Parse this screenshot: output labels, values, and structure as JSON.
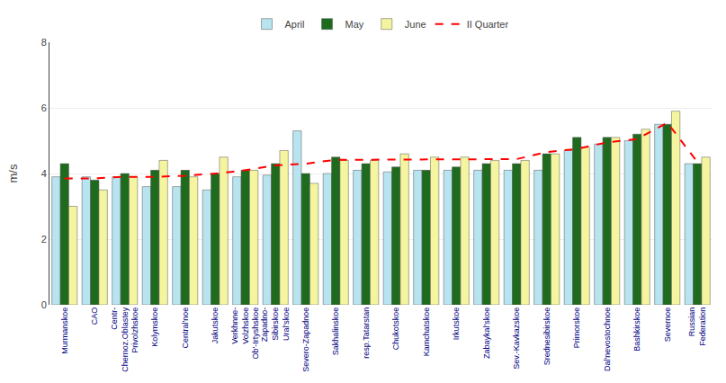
{
  "chart_data": {
    "type": "bar",
    "categories": [
      "Murmanskoe",
      "CAO",
      "Centr-\nChernoz.Oblastey\nPrivolzhskoe",
      "Kolymskoe",
      "Central'noe",
      "Jakutskoe",
      "Verkhnne-\nVolzhskoe\nOb'-Irtyshskoe",
      "Zapadno-\nSibirskoe\nUral'skoe",
      "Severo-Zapadnoe",
      "Sakhalinskoe",
      "resp.Tatarstan",
      "Chukotskoe",
      "Kamchatskoe",
      "Irkutskoe",
      "Zabaykal'skoe",
      "Sev.-Kavkazskoe",
      "Srednesibirskoe",
      "Primorskoe",
      "Dal'nevostochnoe",
      "Bashkirskoe",
      "Severnoe",
      "Russian\nFederation"
    ],
    "series": [
      {
        "name": "April",
        "type": "bar",
        "color": "#b8e4f0",
        "values": [
          3.9,
          3.9,
          3.9,
          3.6,
          3.6,
          3.5,
          3.9,
          3.95,
          5.3,
          4.0,
          4.1,
          4.05,
          4.1,
          4.1,
          4.1,
          4.1,
          4.1,
          4.7,
          4.9,
          5.0,
          5.5,
          4.3
        ]
      },
      {
        "name": "May",
        "type": "bar",
        "color": "#1e6b1e",
        "values": [
          4.3,
          3.8,
          4.0,
          4.1,
          4.1,
          4.0,
          4.1,
          4.3,
          4.0,
          4.5,
          4.3,
          4.2,
          4.1,
          4.2,
          4.3,
          4.3,
          4.6,
          5.1,
          5.1,
          5.2,
          5.5,
          4.3
        ]
      },
      {
        "name": "June",
        "type": "bar",
        "color": "#f5f5a0",
        "values": [
          3.0,
          3.5,
          3.9,
          4.4,
          3.9,
          4.5,
          4.1,
          4.7,
          3.7,
          4.4,
          4.4,
          4.6,
          4.5,
          4.5,
          4.4,
          4.4,
          4.6,
          4.8,
          5.1,
          5.35,
          5.9,
          4.5
        ]
      },
      {
        "name": "II Quarter",
        "type": "line",
        "color": "#ff0000",
        "line_style": "dashed",
        "values": [
          3.85,
          3.85,
          3.9,
          3.9,
          3.93,
          4.0,
          4.1,
          4.25,
          4.3,
          4.42,
          4.42,
          4.42,
          4.42,
          4.44,
          4.44,
          4.44,
          4.65,
          4.75,
          4.95,
          5.05,
          5.55,
          4.35
        ]
      }
    ],
    "ylabel": "m/s",
    "ylim": [
      0,
      8
    ],
    "yticks": [
      0,
      2,
      4,
      6,
      8
    ],
    "grid": true,
    "legend": "top"
  }
}
